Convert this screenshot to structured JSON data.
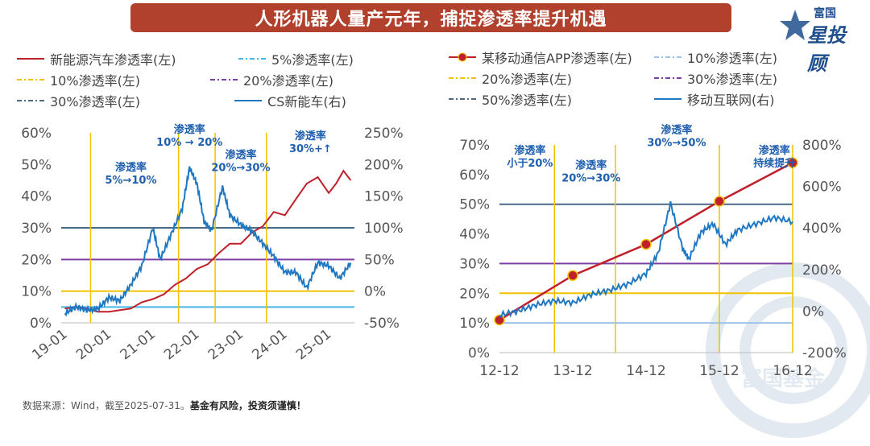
{
  "title": "人形机器人量产元年，捕捉渗透率提升机遇",
  "logo": {
    "top": "富国",
    "main": "星投顾"
  },
  "watermark_text": "富国基金",
  "footer": {
    "source": "数据来源：Wind，截至2025-07-31。",
    "warning": "基金有风险，投资须谨慎！"
  },
  "colors": {
    "red": "#c0202a",
    "blue": "#1f78c1",
    "lightblue": "#45b8e8",
    "gold": "#f2c200",
    "purple": "#7b3fa3",
    "slate": "#4b6a86",
    "skyblue": "#9dc3ea",
    "annot": "#1f5fae"
  },
  "chart_data": [
    {
      "type": "line",
      "legend": [
        {
          "name": "新能源汽车渗透率(左)",
          "style": "solid",
          "color": "#c0202a"
        },
        {
          "name": "5%渗透率(左)",
          "style": "dashdot",
          "color": "#45b8e8"
        },
        {
          "name": "10%渗透率(左)",
          "style": "dashdot",
          "color": "#f2c200"
        },
        {
          "name": "20%渗透率(左)",
          "style": "dashdot",
          "color": "#7b3fa3"
        },
        {
          "name": "30%渗透率(左)",
          "style": "dashdot",
          "color": "#4b6a86"
        },
        {
          "name": "CS新能车(右)",
          "style": "solid",
          "color": "#1f78c1"
        }
      ],
      "x_ticks": [
        "19-01",
        "20-01",
        "21-01",
        "22-01",
        "23-01",
        "24-01",
        "25-01"
      ],
      "y_left_ticks": [
        "0%",
        "10%",
        "20%",
        "30%",
        "40%",
        "50%",
        "60%"
      ],
      "y_right_ticks": [
        "-50%",
        "0%",
        "50%",
        "100%",
        "150%",
        "200%",
        "250%"
      ],
      "y_left_range": [
        0,
        60
      ],
      "y_right_range": [
        -50,
        250
      ],
      "x_range": [
        "2018-12",
        "2025-08"
      ],
      "horizontal_lines": [
        {
          "value": 5,
          "color": "#45b8e8"
        },
        {
          "value": 10,
          "color": "#f2c200"
        },
        {
          "value": 20,
          "color": "#7b3fa3"
        },
        {
          "value": 30,
          "color": "#4b6a86"
        }
      ],
      "vertical_lines": [
        "2019-08",
        "2021-08",
        "2022-06",
        "2023-08"
      ],
      "annotations": [
        {
          "text": [
            "渗透率",
            "5%→10%"
          ],
          "x": "2020-07",
          "y": 48
        },
        {
          "text": [
            "渗透率",
            "10% → 20%"
          ],
          "x": "2021-11",
          "y": 60
        },
        {
          "text": [
            "渗透率",
            "20%→30%"
          ],
          "x": "2023-01",
          "y": 52
        },
        {
          "text": [
            "渗透率",
            "30%+↑"
          ],
          "x": "2024-08",
          "y": 58
        }
      ],
      "series": [
        {
          "name": "新能源汽车渗透率(左)",
          "axis": "left",
          "color": "#c0202a",
          "x": [
            "2019-01",
            "2019-04",
            "2019-07",
            "2019-10",
            "2020-01",
            "2020-04",
            "2020-07",
            "2020-10",
            "2021-01",
            "2021-04",
            "2021-07",
            "2021-10",
            "2022-01",
            "2022-04",
            "2022-07",
            "2022-10",
            "2023-01",
            "2023-04",
            "2023-07",
            "2023-10",
            "2024-01",
            "2024-04",
            "2024-07",
            "2024-10",
            "2025-01",
            "2025-03",
            "2025-05",
            "2025-07"
          ],
          "values": [
            4.5,
            5,
            4.5,
            3.5,
            3.5,
            4,
            4.5,
            6.5,
            7.5,
            9,
            12,
            14,
            17,
            18.5,
            22,
            25,
            25,
            28.5,
            30.5,
            35,
            34,
            39,
            44,
            46,
            41,
            44,
            48,
            45
          ]
        },
        {
          "name": "CS新能车(右)",
          "axis": "right",
          "color": "#1f78c1",
          "x": [
            "2019-01",
            "2019-04",
            "2019-07",
            "2019-10",
            "2020-01",
            "2020-04",
            "2020-07",
            "2020-10",
            "2021-01",
            "2021-03",
            "2021-06",
            "2021-09",
            "2021-11",
            "2022-01",
            "2022-03",
            "2022-05",
            "2022-08",
            "2022-10",
            "2023-01",
            "2023-04",
            "2023-07",
            "2023-10",
            "2024-01",
            "2024-04",
            "2024-07",
            "2024-10",
            "2025-01",
            "2025-04",
            "2025-07"
          ],
          "values": [
            -35,
            -25,
            -30,
            -28,
            -10,
            -15,
            10,
            40,
            100,
            50,
            90,
            130,
            195,
            170,
            110,
            95,
            165,
            120,
            105,
            95,
            75,
            55,
            30,
            30,
            5,
            45,
            40,
            20,
            45
          ]
        }
      ]
    },
    {
      "type": "line",
      "legend": [
        {
          "name": "某移动通信APP渗透率(左)",
          "style": "marker-line",
          "color": "#c0202a"
        },
        {
          "name": "10%渗透率(左)",
          "style": "dashdot",
          "color": "#9dc3ea"
        },
        {
          "name": "20%渗透率(左)",
          "style": "dashdot",
          "color": "#f2c200"
        },
        {
          "name": "30%渗透率(左)",
          "style": "dashdot",
          "color": "#7b3fa3"
        },
        {
          "name": "50%渗透率(左)",
          "style": "dashdot",
          "color": "#4b6a86"
        },
        {
          "name": "移动互联网(右)",
          "style": "solid",
          "color": "#1f78c1"
        }
      ],
      "x_ticks": [
        "12-12",
        "13-12",
        "14-12",
        "15-12",
        "16-12"
      ],
      "y_left_ticks": [
        "0%",
        "10%",
        "20%",
        "30%",
        "40%",
        "50%",
        "60%",
        "70%"
      ],
      "y_right_ticks": [
        "-200%",
        "0%",
        "200%",
        "400%",
        "600%",
        "800%"
      ],
      "y_left_range": [
        0,
        70
      ],
      "y_right_range": [
        -200,
        800
      ],
      "x_range": [
        "2012-12",
        "2016-12"
      ],
      "horizontal_lines": [
        {
          "value": 10,
          "color": "#9dc3ea"
        },
        {
          "value": 20,
          "color": "#f2c200"
        },
        {
          "value": 30,
          "color": "#7b3fa3"
        },
        {
          "value": 50,
          "color": "#4b6a86"
        }
      ],
      "vertical_lines": [
        "2013-09",
        "2014-07",
        "2015-12",
        "2016-12"
      ],
      "annotations": [
        {
          "text": [
            "渗透率",
            "小于20%"
          ],
          "x": "2013-05",
          "y": 67
        },
        {
          "text": [
            "渗透率",
            "20%→30%"
          ],
          "x": "2014-03",
          "y": 62
        },
        {
          "text": [
            "渗透率",
            "30%→50%"
          ],
          "x": "2015-05",
          "y": 74
        },
        {
          "text": [
            "渗透率",
            "持续提升"
          ],
          "x": "2016-09",
          "y": 67
        }
      ],
      "series": [
        {
          "name": "某移动通信APP渗透率(左)",
          "axis": "left",
          "color": "#c0202a",
          "markers": true,
          "x": [
            "2012-12",
            "2013-12",
            "2014-12",
            "2015-12",
            "2016-12"
          ],
          "values": [
            11,
            26,
            36.5,
            51,
            64
          ]
        },
        {
          "name": "移动互联网(右)",
          "axis": "right",
          "color": "#1f78c1",
          "x": [
            "2012-12",
            "2013-03",
            "2013-06",
            "2013-09",
            "2013-12",
            "2014-03",
            "2014-06",
            "2014-09",
            "2014-12",
            "2015-02",
            "2015-04",
            "2015-06",
            "2015-07",
            "2015-09",
            "2015-11",
            "2016-01",
            "2016-03",
            "2016-06",
            "2016-09",
            "2016-12"
          ],
          "values": [
            -20,
            0,
            30,
            50,
            40,
            80,
            100,
            130,
            180,
            280,
            520,
            300,
            250,
            380,
            420,
            320,
            390,
            420,
            450,
            430
          ]
        }
      ]
    }
  ]
}
